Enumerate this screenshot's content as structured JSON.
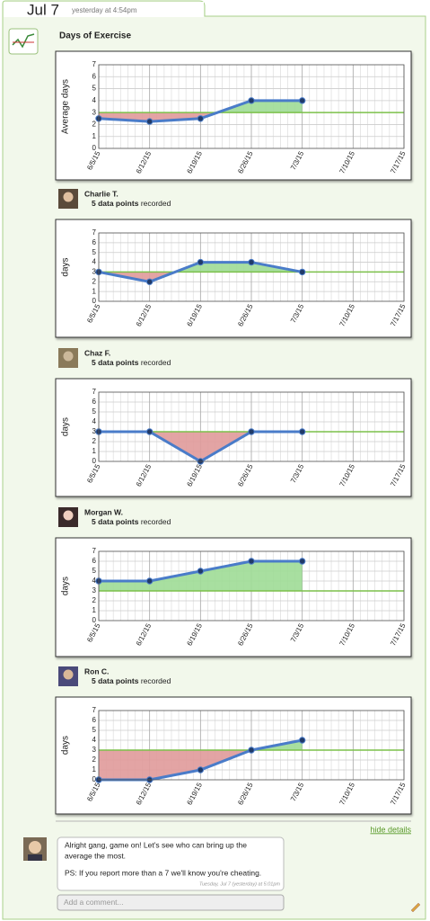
{
  "header": {
    "date": "Jul 7",
    "time": "yesterday at 4:54pm"
  },
  "title": "Days of Exercise",
  "people": [
    {
      "name": "Charlie T.",
      "points": "5 data points",
      "recorded": "recorded"
    },
    {
      "name": "Chaz F.",
      "points": "5 data points",
      "recorded": "recorded"
    },
    {
      "name": "Morgan W.",
      "points": "5 data points",
      "recorded": "recorded"
    },
    {
      "name": "Ron C.",
      "points": "5 data points",
      "recorded": "recorded"
    }
  ],
  "chart_data": [
    {
      "type": "line",
      "ylabel": "Average days",
      "categories": [
        "6/5/15",
        "6/12/15",
        "6/19/15",
        "6/26/15",
        "7/3/15",
        "7/10/15",
        "7/17/15"
      ],
      "values": [
        2.5,
        2.25,
        2.5,
        4,
        4,
        null,
        null
      ],
      "baseline": 3,
      "color": "#4a7cc9",
      "ylim": [
        0,
        7
      ],
      "yticks": [
        0,
        1,
        2,
        3,
        4,
        5,
        6,
        7
      ],
      "grid": true
    },
    {
      "type": "line",
      "ylabel": "days",
      "categories": [
        "6/5/15",
        "6/12/15",
        "6/19/15",
        "6/26/15",
        "7/3/15",
        "7/10/15",
        "7/17/15"
      ],
      "values": [
        3,
        2,
        4,
        4,
        3,
        null,
        null
      ],
      "baseline": 3,
      "color": "#4a7cc9",
      "ylim": [
        0,
        7
      ],
      "yticks": [
        0,
        1,
        2,
        3,
        4,
        5,
        6,
        7
      ],
      "grid": true
    },
    {
      "type": "line",
      "ylabel": "days",
      "categories": [
        "6/5/15",
        "6/12/15",
        "6/19/15",
        "6/26/15",
        "7/3/15",
        "7/10/15",
        "7/17/15"
      ],
      "values": [
        3,
        3,
        0,
        3,
        3,
        null,
        null
      ],
      "baseline": 3,
      "color": "#4a7cc9",
      "ylim": [
        0,
        7
      ],
      "yticks": [
        0,
        1,
        2,
        3,
        4,
        5,
        6,
        7
      ],
      "grid": true
    },
    {
      "type": "line",
      "ylabel": "days",
      "categories": [
        "6/5/15",
        "6/12/15",
        "6/19/15",
        "6/26/15",
        "7/3/15",
        "7/10/15",
        "7/17/15"
      ],
      "values": [
        4,
        4,
        5,
        6,
        6,
        null,
        null
      ],
      "baseline": 3,
      "color": "#4a7cc9",
      "ylim": [
        0,
        7
      ],
      "yticks": [
        0,
        1,
        2,
        3,
        4,
        5,
        6,
        7
      ],
      "grid": true
    },
    {
      "type": "line",
      "ylabel": "days",
      "categories": [
        "6/5/15",
        "6/12/15",
        "6/19/15",
        "6/26/15",
        "7/3/15",
        "7/10/15",
        "7/17/15"
      ],
      "values": [
        0,
        0,
        1,
        3,
        4,
        null,
        null
      ],
      "baseline": 3,
      "color": "#4a7cc9",
      "ylim": [
        0,
        7
      ],
      "yticks": [
        0,
        1,
        2,
        3,
        4,
        5,
        6,
        7
      ],
      "grid": true
    }
  ],
  "footer": {
    "hide_details": "hide details",
    "comment": {
      "lines": [
        "Alright gang, game on!  Let's see who can bring up the",
        "average the most.",
        "PS: If you report more than a 7 we'll know you're cheating."
      ],
      "timestamp": "Tuesday, Jul 7 (yesterday) at 5:01pm"
    },
    "placeholder": "Add a comment..."
  }
}
